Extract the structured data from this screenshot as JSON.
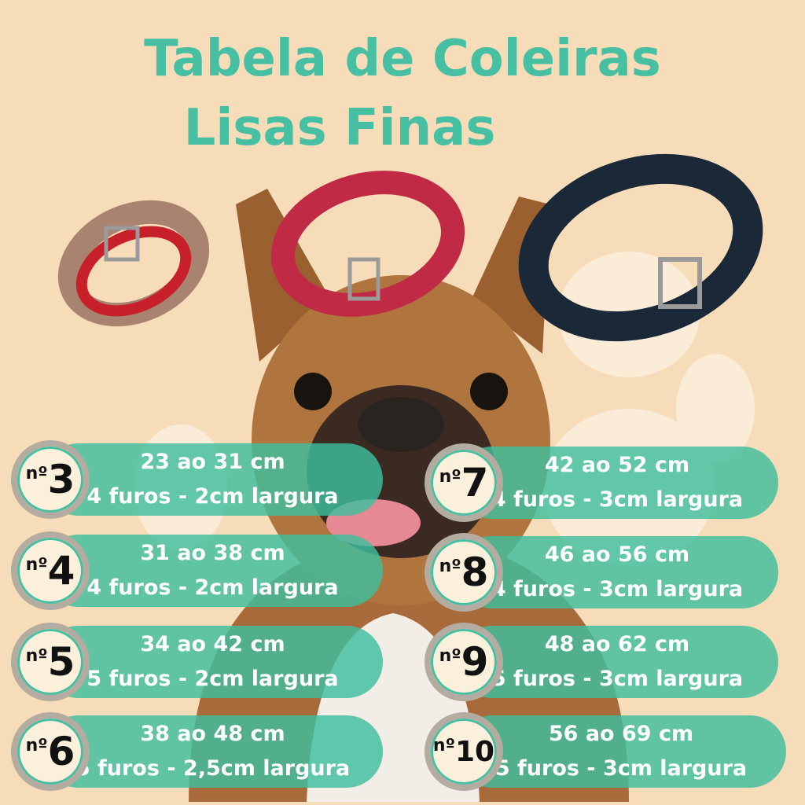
{
  "title": {
    "line1": "Tabela de Coleiras",
    "line2": "Lisas Finas"
  },
  "colors": {
    "accent": "#47bfa3",
    "background": "#f6dcb9"
  },
  "sizes": [
    {
      "prefix": "nº",
      "number": "3",
      "range": "23 ao 31 cm",
      "details": "4 furos - 2cm largura"
    },
    {
      "prefix": "nº",
      "number": "4",
      "range": "31 ao 38 cm",
      "details": "4 furos - 2cm largura"
    },
    {
      "prefix": "nº",
      "number": "5",
      "range": "34 ao 42 cm",
      "details": "5 furos - 2cm largura"
    },
    {
      "prefix": "nº",
      "number": "6",
      "range": "38 ao 48 cm",
      "details": "5 furos - 2,5cm largura"
    },
    {
      "prefix": "nº",
      "number": "7",
      "range": "42 ao 52 cm",
      "details": "4 furos - 3cm largura"
    },
    {
      "prefix": "nº",
      "number": "8",
      "range": "46 ao 56 cm",
      "details": "4 furos - 3cm largura"
    },
    {
      "prefix": "nº",
      "number": "9",
      "range": "48 ao 62 cm",
      "details": "5 furos - 3cm largura"
    },
    {
      "prefix": "nº",
      "number": "10",
      "range": "56 ao 69 cm",
      "details": "5 furos - 3cm largura"
    }
  ]
}
